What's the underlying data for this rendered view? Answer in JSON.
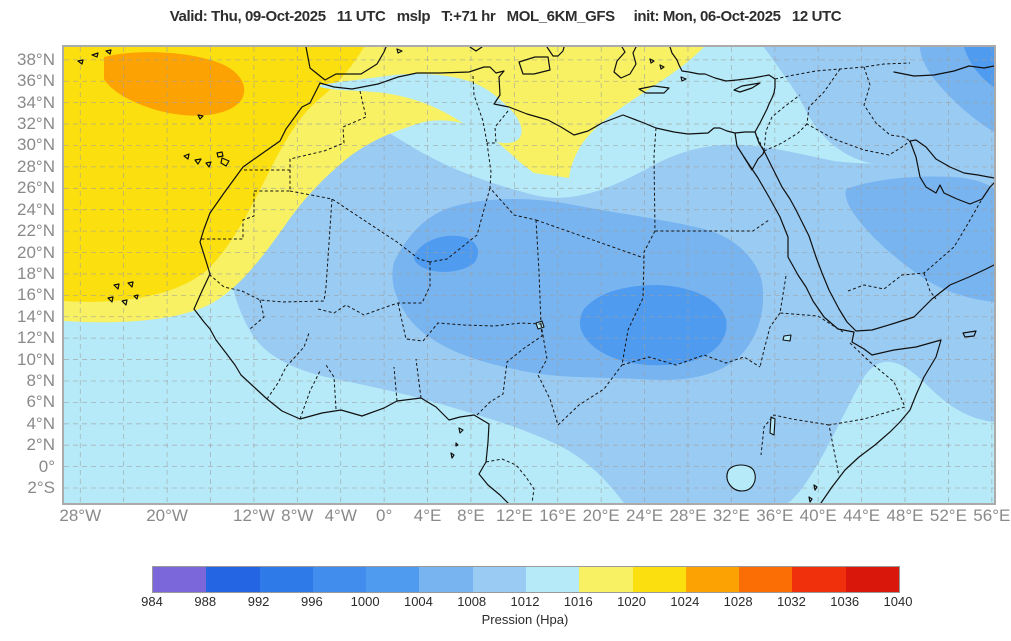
{
  "title": "Valid: Thu, 09-Oct-2025   11 UTC   mslp   T:+71 hr   MOL_6KM_GFS     init: Mon, 06-Oct-2025   12 UTC",
  "chart_data": {
    "type": "heatmap",
    "subtype": "filled-contour pressure map over Africa / Middle East",
    "variable": "mslp",
    "model": "MOL_6KM_GFS",
    "forecast_hour": "T:+71 hr",
    "valid_time": "Thu, 09-Oct-2025 11 UTC",
    "init_time": "Mon, 06-Oct-2025 12 UTC",
    "colorbar_label": "Pression (Hpa)",
    "levels": [
      984,
      988,
      992,
      996,
      1000,
      1004,
      1008,
      1012,
      1016,
      1020,
      1024,
      1028,
      1032,
      1036,
      1040
    ],
    "palette": [
      "#7b66da",
      "#2365e2",
      "#2f7ae9",
      "#418ded",
      "#4f9bf0",
      "#78b4f0",
      "#9acbf3",
      "#b6eaf8",
      "#f7f163",
      "#fcdf0e",
      "#fca303",
      "#fb6e06",
      "#f0300d",
      "#d9170b"
    ],
    "band_colors": {
      "1000-1004": "#4f9bf0",
      "1004-1008": "#78b4f0",
      "1008-1012": "#9acbf3",
      "1012-1016": "#b6eaf8",
      "1016-1020": "#f7f163",
      "1020-1024": "#fcdf0e",
      "1024-1028": "#fca303"
    },
    "lon_range": [
      -29.5,
      56.2
    ],
    "lat_range": [
      -3.4,
      39.2
    ],
    "lat_ticks": [
      {
        "value": 38,
        "label": "38°N"
      },
      {
        "value": 36,
        "label": "36°N"
      },
      {
        "value": 34,
        "label": "34°N"
      },
      {
        "value": 32,
        "label": "32°N"
      },
      {
        "value": 30,
        "label": "30°N"
      },
      {
        "value": 28,
        "label": "28°N"
      },
      {
        "value": 26,
        "label": "26°N"
      },
      {
        "value": 24,
        "label": "24°N"
      },
      {
        "value": 22,
        "label": "22°N"
      },
      {
        "value": 20,
        "label": "20°N"
      },
      {
        "value": 18,
        "label": "18°N"
      },
      {
        "value": 16,
        "label": "16°N"
      },
      {
        "value": 14,
        "label": "14°N"
      },
      {
        "value": 12,
        "label": "12°N"
      },
      {
        "value": 10,
        "label": "10°N"
      },
      {
        "value": 8,
        "label": "8°N"
      },
      {
        "value": 6,
        "label": "6°N"
      },
      {
        "value": 4,
        "label": "4°N"
      },
      {
        "value": 2,
        "label": "2°N"
      },
      {
        "value": 0,
        "label": "0°"
      },
      {
        "value": -2,
        "label": "2°S"
      }
    ],
    "lon_gridlines": [
      -28,
      -24,
      -20,
      -16,
      -12,
      -8,
      -4,
      0,
      4,
      8,
      12,
      16,
      20,
      24,
      28,
      32,
      36,
      40,
      44,
      48,
      52,
      56
    ],
    "lon_ticks": [
      {
        "value": -28,
        "label": "28°W"
      },
      {
        "value": -20,
        "label": "20°W"
      },
      {
        "value": -12,
        "label": "12°W"
      },
      {
        "value": -8,
        "label": "8°W"
      },
      {
        "value": -4,
        "label": "4°W"
      },
      {
        "value": 0,
        "label": "0°"
      },
      {
        "value": 4,
        "label": "4°E"
      },
      {
        "value": 8,
        "label": "8°E"
      },
      {
        "value": 12,
        "label": "12°E"
      },
      {
        "value": 16,
        "label": "16°E"
      },
      {
        "value": 20,
        "label": "20°E"
      },
      {
        "value": 24,
        "label": "24°E"
      },
      {
        "value": 28,
        "label": "28°E"
      },
      {
        "value": 32,
        "label": "32°E"
      },
      {
        "value": 36,
        "label": "36°E"
      },
      {
        "value": 40,
        "label": "40°E"
      },
      {
        "value": 44,
        "label": "44°E"
      },
      {
        "value": 48,
        "label": "48°E"
      },
      {
        "value": 52,
        "label": "52°E"
      },
      {
        "value": 56,
        "label": "56°E"
      }
    ],
    "features": [
      {
        "feature": "high-pressure core ~1024-1028 hPa",
        "location": "NE Atlantic west of Morocco, ~20W 35N"
      },
      {
        "feature": "1020-1024 hPa ridge",
        "location": "NW Atlantic quadrant of map"
      },
      {
        "feature": "1016-1020 hPa band",
        "location": "eastern Atlantic and central Mediterranean into Libya"
      },
      {
        "feature": "1012-1016 hPa",
        "location": "tropical Atlantic, Gulf of Guinea, eastern Mediterranean, Somali coast waters"
      },
      {
        "feature": "1008-1012 hPa",
        "location": "North African interior, Arabia rim, East Africa"
      },
      {
        "feature": "1004-1008 hPa",
        "location": "Sahara / Sahel band and central Arabia"
      },
      {
        "feature": "low band 1000-1004 hPa",
        "location": "Chad / Sudan heat low region"
      }
    ]
  }
}
